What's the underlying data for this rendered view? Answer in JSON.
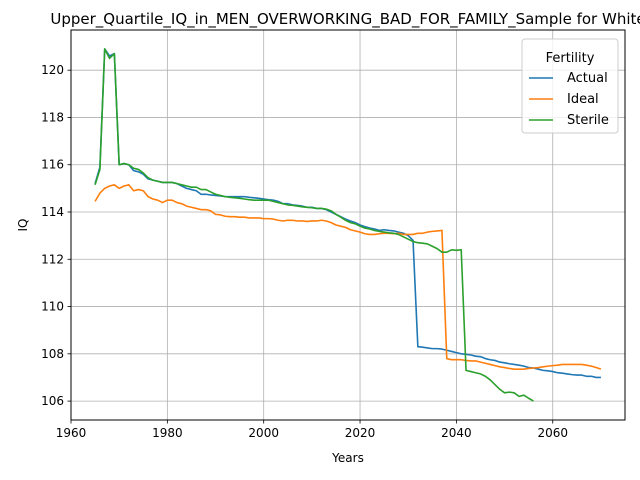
{
  "chart_data": {
    "type": "line",
    "title": "Upper_Quartile_IQ_in_MEN_OVERWORKING_BAD_FOR_FAMILY_Sample for White",
    "xlabel": "Years",
    "ylabel": "IQ",
    "xlim": [
      1960,
      2075
    ],
    "ylim": [
      105.2,
      121.7
    ],
    "xticks": [
      1960,
      1980,
      2000,
      2020,
      2040,
      2060
    ],
    "yticks": [
      106,
      108,
      110,
      112,
      114,
      116,
      118,
      120
    ],
    "grid": true,
    "legend": {
      "title": "Fertility",
      "placement": "top-right"
    },
    "series": [
      {
        "name": "Actual",
        "color": "#1f77b4",
        "points": [
          [
            1965,
            115.2
          ],
          [
            1966,
            115.9
          ],
          [
            1967,
            120.9
          ],
          [
            1968,
            120.6
          ],
          [
            1969,
            120.7
          ],
          [
            1970,
            116.0
          ],
          [
            1971,
            116.05
          ],
          [
            1972,
            116.0
          ],
          [
            1973,
            115.75
          ],
          [
            1974,
            115.7
          ],
          [
            1975,
            115.6
          ],
          [
            1976,
            115.4
          ],
          [
            1977,
            115.35
          ],
          [
            1978,
            115.3
          ],
          [
            1979,
            115.25
          ],
          [
            1980,
            115.25
          ],
          [
            1981,
            115.25
          ],
          [
            1982,
            115.2
          ],
          [
            1983,
            115.1
          ],
          [
            1984,
            115.0
          ],
          [
            1985,
            114.95
          ],
          [
            1986,
            114.9
          ],
          [
            1987,
            114.75
          ],
          [
            1988,
            114.75
          ],
          [
            1989,
            114.72
          ],
          [
            1990,
            114.7
          ],
          [
            1991,
            114.68
          ],
          [
            1992,
            114.65
          ],
          [
            1993,
            114.65
          ],
          [
            1994,
            114.65
          ],
          [
            1995,
            114.65
          ],
          [
            1996,
            114.65
          ],
          [
            1997,
            114.62
          ],
          [
            1998,
            114.6
          ],
          [
            1999,
            114.58
          ],
          [
            2000,
            114.55
          ],
          [
            2001,
            114.52
          ],
          [
            2002,
            114.5
          ],
          [
            2003,
            114.45
          ],
          [
            2004,
            114.35
          ],
          [
            2005,
            114.35
          ],
          [
            2006,
            114.3
          ],
          [
            2007,
            114.28
          ],
          [
            2008,
            114.25
          ],
          [
            2009,
            114.2
          ],
          [
            2010,
            114.2
          ],
          [
            2011,
            114.15
          ],
          [
            2012,
            114.15
          ],
          [
            2013,
            114.1
          ],
          [
            2014,
            114.0
          ],
          [
            2015,
            113.9
          ],
          [
            2016,
            113.8
          ],
          [
            2017,
            113.7
          ],
          [
            2018,
            113.62
          ],
          [
            2019,
            113.55
          ],
          [
            2020,
            113.45
          ],
          [
            2021,
            113.38
          ],
          [
            2022,
            113.32
          ],
          [
            2023,
            113.28
          ],
          [
            2024,
            113.22
          ],
          [
            2025,
            113.25
          ],
          [
            2026,
            113.22
          ],
          [
            2027,
            113.2
          ],
          [
            2028,
            113.15
          ],
          [
            2029,
            113.1
          ],
          [
            2030,
            113.0
          ],
          [
            2031,
            112.8
          ],
          [
            2032,
            108.3
          ],
          [
            2033,
            108.28
          ],
          [
            2034,
            108.25
          ],
          [
            2035,
            108.22
          ],
          [
            2036,
            108.22
          ],
          [
            2037,
            108.2
          ],
          [
            2038,
            108.15
          ],
          [
            2039,
            108.1
          ],
          [
            2040,
            108.05
          ],
          [
            2041,
            108.0
          ],
          [
            2042,
            107.98
          ],
          [
            2043,
            107.95
          ],
          [
            2044,
            107.9
          ],
          [
            2045,
            107.88
          ],
          [
            2046,
            107.8
          ],
          [
            2047,
            107.75
          ],
          [
            2048,
            107.72
          ],
          [
            2049,
            107.65
          ],
          [
            2050,
            107.62
          ],
          [
            2051,
            107.58
          ],
          [
            2052,
            107.55
          ],
          [
            2053,
            107.52
          ],
          [
            2054,
            107.48
          ],
          [
            2055,
            107.42
          ],
          [
            2056,
            107.4
          ],
          [
            2057,
            107.35
          ],
          [
            2058,
            107.3
          ],
          [
            2059,
            107.28
          ],
          [
            2060,
            107.25
          ],
          [
            2061,
            107.2
          ],
          [
            2062,
            107.18
          ],
          [
            2063,
            107.15
          ],
          [
            2064,
            107.12
          ],
          [
            2065,
            107.1
          ],
          [
            2066,
            107.1
          ],
          [
            2067,
            107.05
          ],
          [
            2068,
            107.05
          ],
          [
            2069,
            107.0
          ],
          [
            2070,
            107.0
          ]
        ]
      },
      {
        "name": "Ideal",
        "color": "#ff7f0e",
        "points": [
          [
            1965,
            114.45
          ],
          [
            1966,
            114.8
          ],
          [
            1967,
            115.0
          ],
          [
            1968,
            115.1
          ],
          [
            1969,
            115.15
          ],
          [
            1970,
            115.0
          ],
          [
            1971,
            115.1
          ],
          [
            1972,
            115.15
          ],
          [
            1973,
            114.9
          ],
          [
            1974,
            114.95
          ],
          [
            1975,
            114.9
          ],
          [
            1976,
            114.65
          ],
          [
            1977,
            114.55
          ],
          [
            1978,
            114.5
          ],
          [
            1979,
            114.4
          ],
          [
            1980,
            114.5
          ],
          [
            1981,
            114.5
          ],
          [
            1982,
            114.4
          ],
          [
            1983,
            114.35
          ],
          [
            1984,
            114.25
          ],
          [
            1985,
            114.2
          ],
          [
            1986,
            114.15
          ],
          [
            1987,
            114.1
          ],
          [
            1988,
            114.1
          ],
          [
            1989,
            114.05
          ],
          [
            1990,
            113.9
          ],
          [
            1991,
            113.88
          ],
          [
            1992,
            113.82
          ],
          [
            1993,
            113.8
          ],
          [
            1994,
            113.8
          ],
          [
            1995,
            113.78
          ],
          [
            1996,
            113.78
          ],
          [
            1997,
            113.75
          ],
          [
            1998,
            113.75
          ],
          [
            1999,
            113.75
          ],
          [
            2000,
            113.72
          ],
          [
            2001,
            113.72
          ],
          [
            2002,
            113.7
          ],
          [
            2003,
            113.65
          ],
          [
            2004,
            113.62
          ],
          [
            2005,
            113.65
          ],
          [
            2006,
            113.65
          ],
          [
            2007,
            113.62
          ],
          [
            2008,
            113.62
          ],
          [
            2009,
            113.6
          ],
          [
            2010,
            113.62
          ],
          [
            2011,
            113.62
          ],
          [
            2012,
            113.65
          ],
          [
            2013,
            113.62
          ],
          [
            2014,
            113.55
          ],
          [
            2015,
            113.45
          ],
          [
            2016,
            113.4
          ],
          [
            2017,
            113.35
          ],
          [
            2018,
            113.25
          ],
          [
            2019,
            113.2
          ],
          [
            2020,
            113.15
          ],
          [
            2021,
            113.08
          ],
          [
            2022,
            113.05
          ],
          [
            2023,
            113.05
          ],
          [
            2024,
            113.08
          ],
          [
            2025,
            113.1
          ],
          [
            2026,
            113.1
          ],
          [
            2027,
            113.08
          ],
          [
            2028,
            113.1
          ],
          [
            2029,
            113.05
          ],
          [
            2030,
            113.05
          ],
          [
            2031,
            113.05
          ],
          [
            2032,
            113.1
          ],
          [
            2033,
            113.1
          ],
          [
            2034,
            113.15
          ],
          [
            2035,
            113.18
          ],
          [
            2036,
            113.2
          ],
          [
            2037,
            113.22
          ],
          [
            2038,
            107.8
          ],
          [
            2039,
            107.75
          ],
          [
            2040,
            107.75
          ],
          [
            2041,
            107.75
          ],
          [
            2042,
            107.72
          ],
          [
            2043,
            107.7
          ],
          [
            2044,
            107.7
          ],
          [
            2045,
            107.65
          ],
          [
            2046,
            107.6
          ],
          [
            2047,
            107.55
          ],
          [
            2048,
            107.5
          ],
          [
            2049,
            107.45
          ],
          [
            2050,
            107.42
          ],
          [
            2051,
            107.38
          ],
          [
            2052,
            107.35
          ],
          [
            2053,
            107.35
          ],
          [
            2054,
            107.35
          ],
          [
            2055,
            107.38
          ],
          [
            2056,
            107.4
          ],
          [
            2057,
            107.42
          ],
          [
            2058,
            107.45
          ],
          [
            2059,
            107.48
          ],
          [
            2060,
            107.5
          ],
          [
            2061,
            107.52
          ],
          [
            2062,
            107.55
          ],
          [
            2063,
            107.55
          ],
          [
            2064,
            107.55
          ],
          [
            2065,
            107.55
          ],
          [
            2066,
            107.55
          ],
          [
            2067,
            107.52
          ],
          [
            2068,
            107.48
          ],
          [
            2069,
            107.42
          ],
          [
            2070,
            107.35
          ]
        ]
      },
      {
        "name": "Sterile",
        "color": "#2ca02c",
        "points": [
          [
            1965,
            115.15
          ],
          [
            1966,
            115.8
          ],
          [
            1967,
            120.9
          ],
          [
            1968,
            120.5
          ],
          [
            1969,
            120.7
          ],
          [
            1970,
            116.0
          ],
          [
            1971,
            116.05
          ],
          [
            1972,
            116.0
          ],
          [
            1973,
            115.85
          ],
          [
            1974,
            115.8
          ],
          [
            1975,
            115.65
          ],
          [
            1976,
            115.45
          ],
          [
            1977,
            115.35
          ],
          [
            1978,
            115.3
          ],
          [
            1979,
            115.25
          ],
          [
            1980,
            115.25
          ],
          [
            1981,
            115.25
          ],
          [
            1982,
            115.2
          ],
          [
            1983,
            115.15
          ],
          [
            1984,
            115.1
          ],
          [
            1985,
            115.05
          ],
          [
            1986,
            115.05
          ],
          [
            1987,
            114.95
          ],
          [
            1988,
            114.95
          ],
          [
            1989,
            114.85
          ],
          [
            1990,
            114.75
          ],
          [
            1991,
            114.7
          ],
          [
            1992,
            114.65
          ],
          [
            1993,
            114.62
          ],
          [
            1994,
            114.6
          ],
          [
            1995,
            114.58
          ],
          [
            1996,
            114.55
          ],
          [
            1997,
            114.52
          ],
          [
            1998,
            114.5
          ],
          [
            1999,
            114.5
          ],
          [
            2000,
            114.5
          ],
          [
            2001,
            114.5
          ],
          [
            2002,
            114.45
          ],
          [
            2003,
            114.4
          ],
          [
            2004,
            114.35
          ],
          [
            2005,
            114.3
          ],
          [
            2006,
            114.28
          ],
          [
            2007,
            114.25
          ],
          [
            2008,
            114.22
          ],
          [
            2009,
            114.2
          ],
          [
            2010,
            114.18
          ],
          [
            2011,
            114.15
          ],
          [
            2012,
            114.15
          ],
          [
            2013,
            114.12
          ],
          [
            2014,
            114.05
          ],
          [
            2015,
            113.9
          ],
          [
            2016,
            113.78
          ],
          [
            2017,
            113.65
          ],
          [
            2018,
            113.55
          ],
          [
            2019,
            113.5
          ],
          [
            2020,
            113.4
          ],
          [
            2021,
            113.32
          ],
          [
            2022,
            113.28
          ],
          [
            2023,
            113.22
          ],
          [
            2024,
            113.18
          ],
          [
            2025,
            113.15
          ],
          [
            2026,
            113.12
          ],
          [
            2027,
            113.1
          ],
          [
            2028,
            113.05
          ],
          [
            2029,
            112.95
          ],
          [
            2030,
            112.85
          ],
          [
            2031,
            112.75
          ],
          [
            2032,
            112.7
          ],
          [
            2033,
            112.68
          ],
          [
            2034,
            112.65
          ],
          [
            2035,
            112.55
          ],
          [
            2036,
            112.45
          ],
          [
            2037,
            112.3
          ],
          [
            2038,
            112.3
          ],
          [
            2039,
            112.4
          ],
          [
            2040,
            112.38
          ],
          [
            2041,
            112.4
          ],
          [
            2042,
            107.3
          ],
          [
            2043,
            107.25
          ],
          [
            2044,
            107.2
          ],
          [
            2045,
            107.15
          ],
          [
            2046,
            107.05
          ],
          [
            2047,
            106.9
          ],
          [
            2048,
            106.7
          ],
          [
            2049,
            106.5
          ],
          [
            2050,
            106.35
          ],
          [
            2051,
            106.38
          ],
          [
            2052,
            106.35
          ],
          [
            2053,
            106.2
          ],
          [
            2054,
            106.25
          ],
          [
            2055,
            106.12
          ],
          [
            2056,
            106.0
          ]
        ]
      }
    ]
  }
}
